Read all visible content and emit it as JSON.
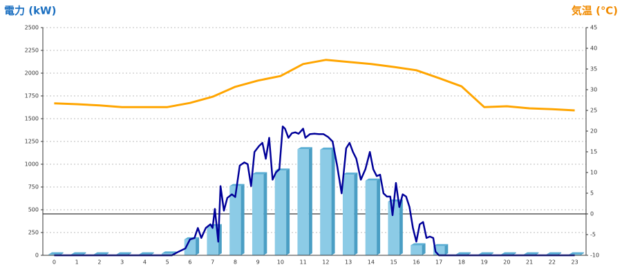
{
  "chart_data": {
    "type": "combo",
    "y_label": "電力 (kW)",
    "y_label_color": "#1b6fc0",
    "y2_label": "気温 (℃)",
    "y2_label_color": "#f08a00",
    "categories": [
      "0",
      "1",
      "2",
      "3",
      "4",
      "5",
      "6",
      "7",
      "8",
      "9",
      "10",
      "11",
      "12",
      "13",
      "14",
      "15",
      "16",
      "17",
      "18",
      "19",
      "20",
      "21",
      "22",
      "23"
    ],
    "ylim": [
      0,
      2500
    ],
    "yticks": [
      0,
      250,
      500,
      750,
      1000,
      1250,
      1500,
      1750,
      2000,
      2250,
      2500
    ],
    "y2lim": [
      -10,
      45
    ],
    "y2ticks": [
      -10,
      -5,
      0,
      5,
      10,
      15,
      20,
      25,
      30,
      35,
      40,
      45
    ],
    "grid": true,
    "y2_zero_line": true,
    "series": [
      {
        "type": "bar",
        "color": "#8ccbe6",
        "values": [
          10,
          10,
          10,
          10,
          10,
          20,
          175,
          320,
          760,
          890,
          930,
          1165,
          1160,
          885,
          820,
          590,
          110,
          100,
          10,
          10,
          10,
          10,
          10,
          10
        ]
      },
      {
        "type": "line",
        "color": "#000099",
        "x": [
          0,
          5.2,
          5.5,
          5.8,
          6.0,
          6.2,
          6.35,
          6.5,
          6.7,
          6.9,
          7.0,
          7.1,
          7.25,
          7.35,
          7.5,
          7.65,
          7.85,
          8.0,
          8.2,
          8.4,
          8.55,
          8.7,
          8.85,
          9.05,
          9.2,
          9.35,
          9.5,
          9.65,
          9.8,
          9.95,
          10.1,
          10.2,
          10.35,
          10.5,
          10.65,
          10.8,
          11.0,
          11.1,
          11.3,
          11.5,
          11.7,
          11.9,
          12.1,
          12.3,
          12.5,
          12.7,
          12.9,
          13.05,
          13.2,
          13.35,
          13.55,
          13.75,
          13.95,
          14.1,
          14.25,
          14.4,
          14.55,
          14.7,
          14.85,
          14.95,
          15.1,
          15.25,
          15.4,
          15.55,
          15.7,
          15.85,
          16.0,
          16.15,
          16.3,
          16.45,
          16.6,
          16.75,
          16.85,
          17.0,
          23
        ],
        "values": [
          0,
          0,
          40,
          76,
          175,
          190,
          300,
          190,
          300,
          340,
          300,
          510,
          150,
          760,
          490,
          630,
          670,
          640,
          985,
          1020,
          1000,
          760,
          1135,
          1200,
          1235,
          1060,
          1290,
          830,
          910,
          945,
          1415,
          1390,
          1290,
          1340,
          1350,
          1335,
          1390,
          1290,
          1330,
          1335,
          1330,
          1330,
          1300,
          1250,
          985,
          680,
          1175,
          1235,
          1135,
          1060,
          830,
          945,
          1135,
          945,
          870,
          885,
          680,
          645,
          645,
          440,
          795,
          530,
          670,
          645,
          530,
          300,
          150,
          340,
          365,
          190,
          205,
          190,
          40,
          0,
          0
        ]
      },
      {
        "type": "line",
        "axis": "y2",
        "color": "#ffa500",
        "values": [
          26.7,
          26.5,
          26.2,
          25.8,
          25.8,
          25.8,
          26.8,
          28.3,
          30.7,
          32.2,
          33.3,
          36.2,
          37.2,
          36.7,
          36.2,
          35.5,
          34.7,
          32.8,
          30.8,
          25.8,
          26,
          25.5,
          25.3,
          25
        ]
      }
    ]
  }
}
